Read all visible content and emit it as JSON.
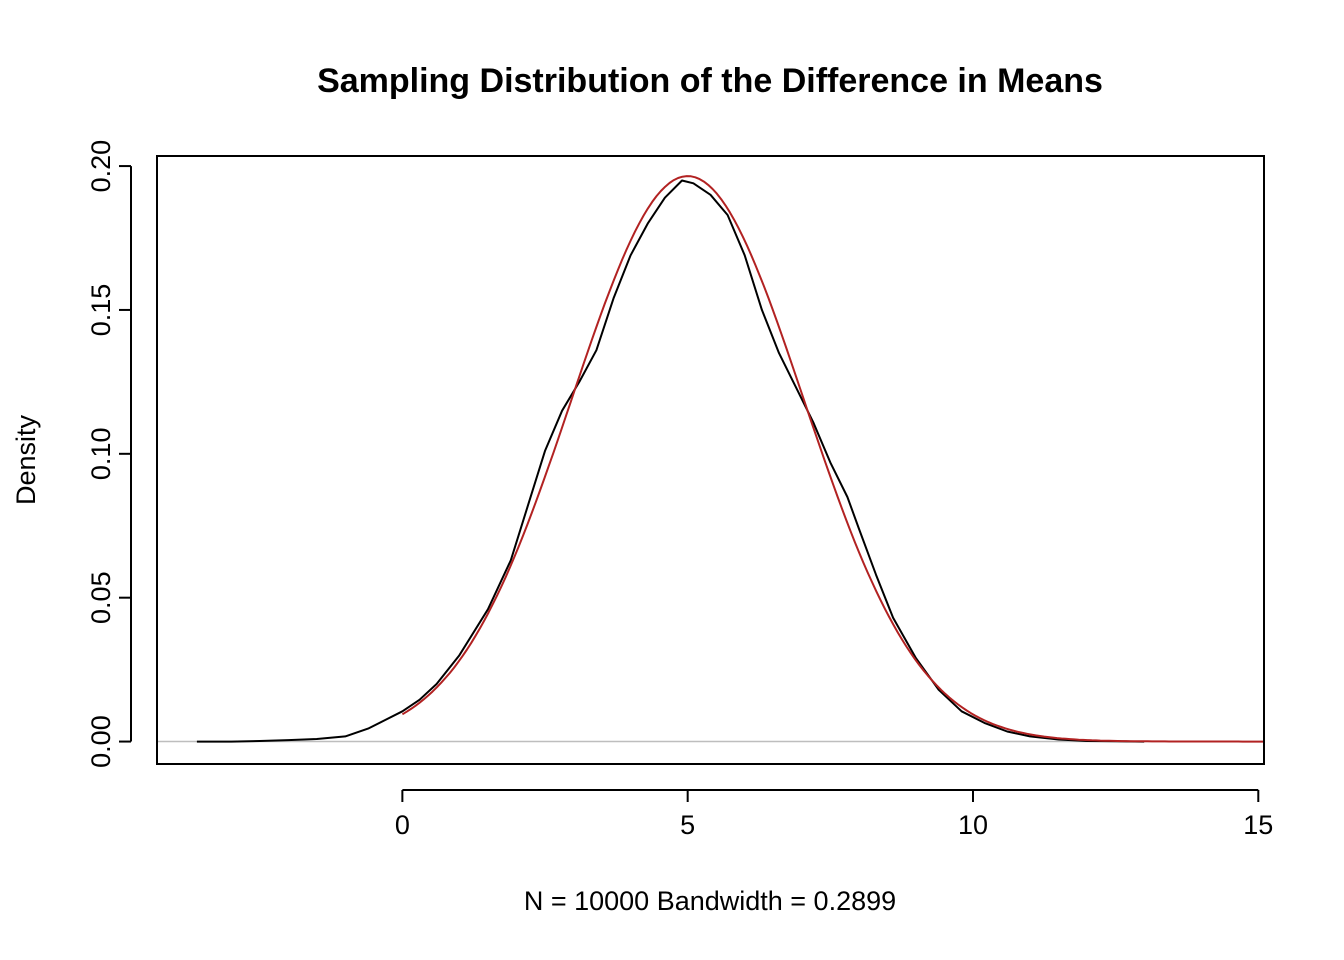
{
  "chart_data": {
    "type": "line",
    "title": "Sampling Distribution of the Difference in Means",
    "xlabel": "N = 10000   Bandwidth = 0.2899",
    "ylabel": "Density",
    "xlim": [
      -4.3,
      15.1
    ],
    "ylim": [
      -0.0078,
      0.2035
    ],
    "x_ticks": [
      {
        "value": 0,
        "label": "0"
      },
      {
        "value": 5,
        "label": "5"
      },
      {
        "value": 10,
        "label": "10"
      },
      {
        "value": 15,
        "label": "15"
      }
    ],
    "y_ticks": [
      {
        "value": 0.0,
        "label": "0.00"
      },
      {
        "value": 0.05,
        "label": "0.05"
      },
      {
        "value": 0.1,
        "label": "0.10"
      },
      {
        "value": 0.15,
        "label": "0.15"
      },
      {
        "value": 0.2,
        "label": "0.20"
      }
    ],
    "grid": false,
    "baseline": 0,
    "series": [
      {
        "color": "#000000",
        "description": "kernel density estimate",
        "x": [
          -3.6,
          -3.0,
          -2.5,
          -2.0,
          -1.5,
          -1.0,
          -0.6,
          -0.3,
          0.0,
          0.3,
          0.6,
          1.0,
          1.5,
          1.9,
          2.2,
          2.5,
          2.8,
          3.1,
          3.4,
          3.7,
          4.0,
          4.3,
          4.6,
          4.9,
          5.1,
          5.4,
          5.7,
          6.0,
          6.3,
          6.6,
          6.9,
          7.2,
          7.5,
          7.8,
          8.0,
          8.3,
          8.6,
          9.0,
          9.4,
          9.8,
          10.2,
          10.6,
          11.0,
          11.5,
          12.0,
          12.5,
          13.0
        ],
        "y": [
          0.0,
          0.0,
          0.0002,
          0.0005,
          0.0009,
          0.0018,
          0.0045,
          0.0075,
          0.0105,
          0.0145,
          0.02,
          0.03,
          0.046,
          0.063,
          0.082,
          0.101,
          0.115,
          0.125,
          0.136,
          0.154,
          0.169,
          0.18,
          0.189,
          0.195,
          0.194,
          0.19,
          0.183,
          0.169,
          0.15,
          0.135,
          0.123,
          0.111,
          0.097,
          0.085,
          0.074,
          0.058,
          0.043,
          0.029,
          0.018,
          0.0105,
          0.0065,
          0.0035,
          0.0018,
          0.0007,
          0.0002,
          0.0001,
          0.0
        ]
      },
      {
        "color": "#b22222",
        "description": "normal density curve",
        "mean": 5.0,
        "sd": 2.03,
        "x_range": [
          0.0,
          15.1
        ]
      }
    ]
  }
}
